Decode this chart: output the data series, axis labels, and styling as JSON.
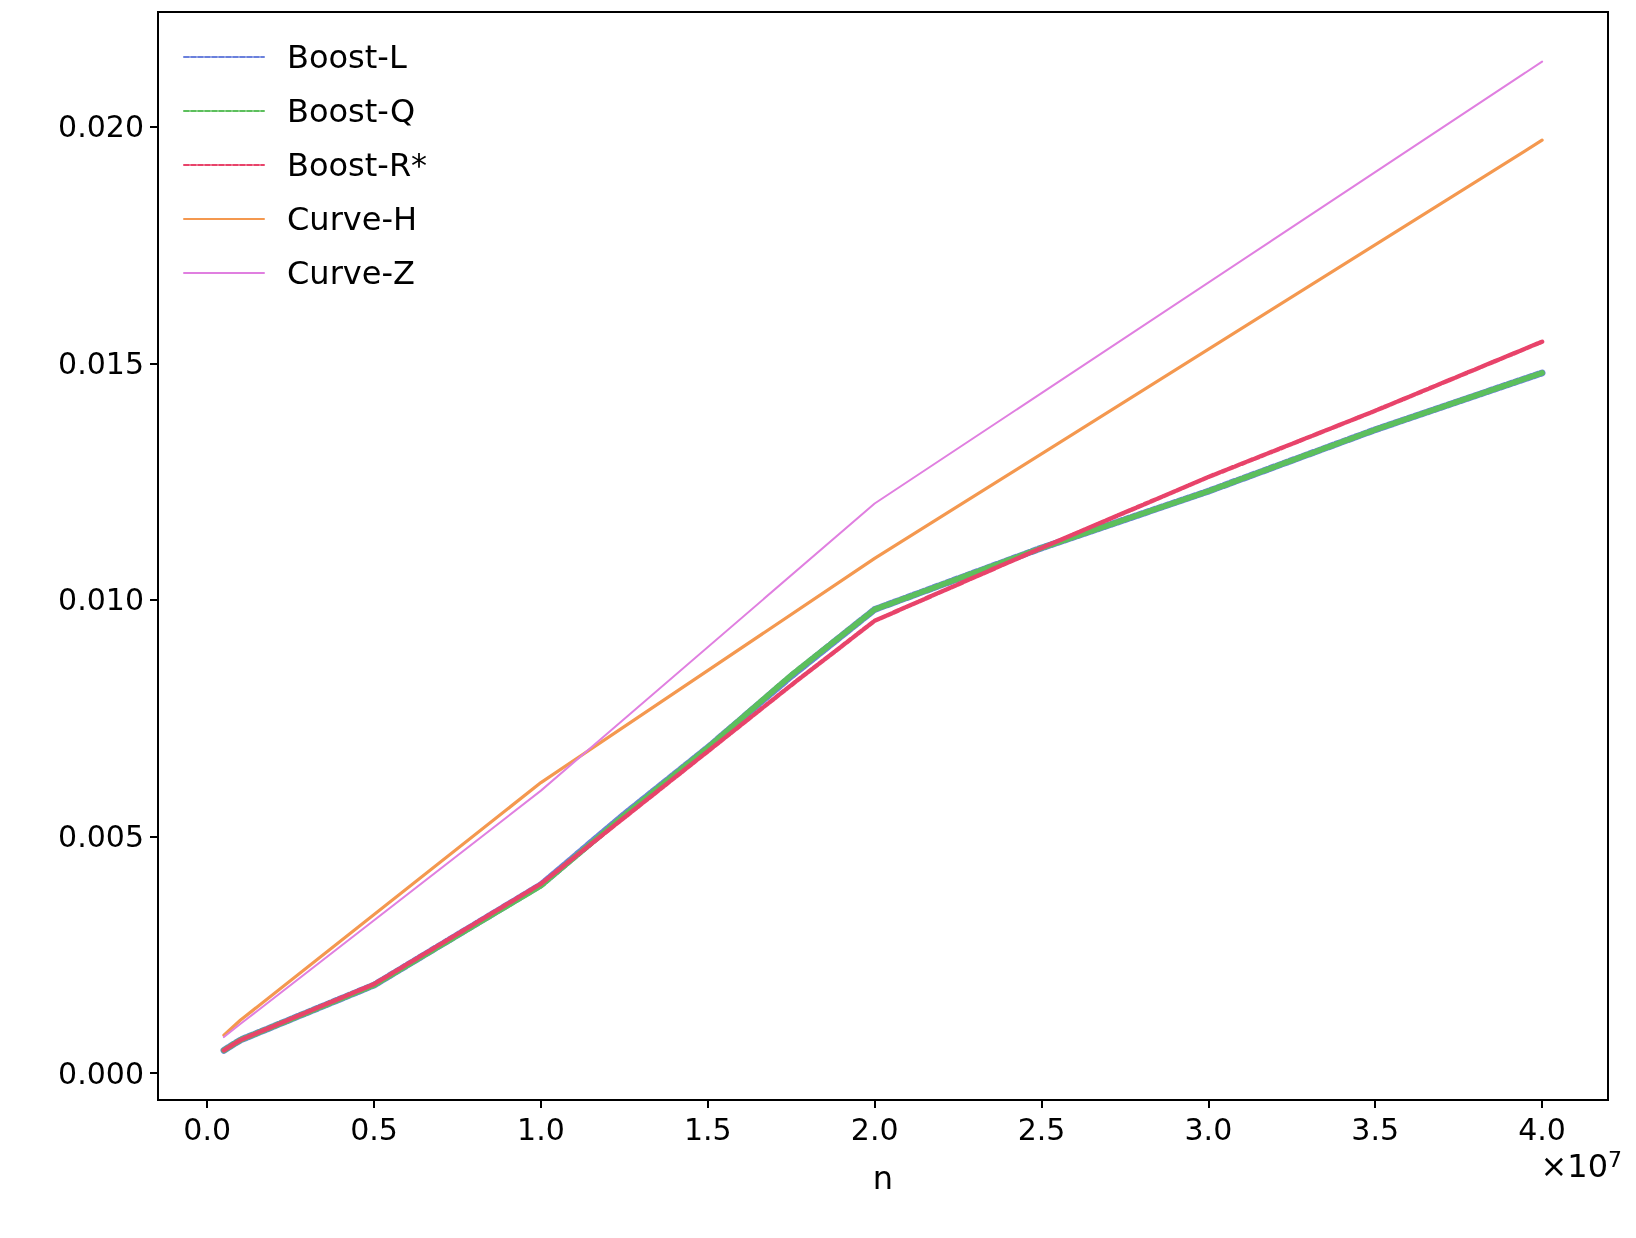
{
  "chart_data": {
    "type": "line",
    "xlabel": "n",
    "legend": "top left",
    "grid": false,
    "marker": "none",
    "xlim": [
      -0.1475,
      4.1975
    ],
    "xticks": [
      {
        "value": 0,
        "label": "0.0"
      },
      0.5,
      {
        "value": 1,
        "label": "1.0"
      },
      1.5,
      {
        "value": 2,
        "label": "2.0"
      },
      2.5,
      {
        "value": 3,
        "label": "3.0"
      },
      3.5,
      {
        "value": 4,
        "label": "4.0"
      }
    ],
    "ylim": [
      -0.00057,
      0.02243
    ],
    "yticks": [
      {
        "value": 0,
        "label": "0.000"
      },
      {
        "value": 0.005,
        "label": "0.005"
      },
      {
        "value": 0.01,
        "label": "0.010"
      },
      {
        "value": 0.015,
        "label": "0.015"
      },
      {
        "value": 0.02,
        "label": "0.020"
      }
    ],
    "annotations": [
      "×10$^{7}$"
    ],
    "series": [
      {
        "name": "Boost-L",
        "color": "#6a80dc",
        "line_style": "dashed",
        "x": [
          0.05,
          0.1,
          0.5,
          1,
          1.25,
          1.5,
          1.75,
          2,
          2.5,
          3,
          3.5,
          4
        ],
        "values": [
          0.00048,
          0.0007,
          0.00186,
          0.00398,
          0.00547,
          0.00688,
          0.00839,
          0.0098,
          0.0111,
          0.0123,
          0.0136,
          0.0148
        ]
      },
      {
        "name": "Boost-Q",
        "color": "#5cbf5c",
        "line_style": "dashed",
        "x": [
          0.05,
          0.1,
          0.5,
          1,
          1.25,
          1.5,
          1.75,
          2,
          2.5,
          3,
          3.5,
          4
        ],
        "values": [
          0.00048,
          0.0007,
          0.00186,
          0.00396,
          0.00545,
          0.00688,
          0.00841,
          0.0098,
          0.0111,
          0.0123,
          0.0136,
          0.0148
        ]
      },
      {
        "name": "Boost-R*",
        "color": "#e8436a",
        "line_style": "dashed",
        "x": [
          0.05,
          0.1,
          0.5,
          1,
          1.25,
          1.5,
          1.75,
          2,
          2.5,
          3,
          3.5,
          4
        ],
        "values": [
          0.00048,
          0.0007,
          0.00188,
          0.004,
          0.0054,
          0.0068,
          0.0082,
          0.00956,
          0.0111,
          0.0126,
          0.014,
          0.01546
        ]
      },
      {
        "name": "Curve-H",
        "color": "#f4984f",
        "line_style": "solid",
        "x": [
          0.05,
          0.1,
          1,
          2,
          4
        ],
        "values": [
          0.0008,
          0.00112,
          0.00614,
          0.01088,
          0.01972
        ]
      },
      {
        "name": "Curve-Z",
        "color": "#e07fe0",
        "line_style": "solid",
        "x": [
          0.05,
          0.1,
          1,
          2,
          4
        ],
        "values": [
          0.00076,
          0.00104,
          0.00597,
          0.01204,
          0.02138
        ]
      }
    ]
  }
}
